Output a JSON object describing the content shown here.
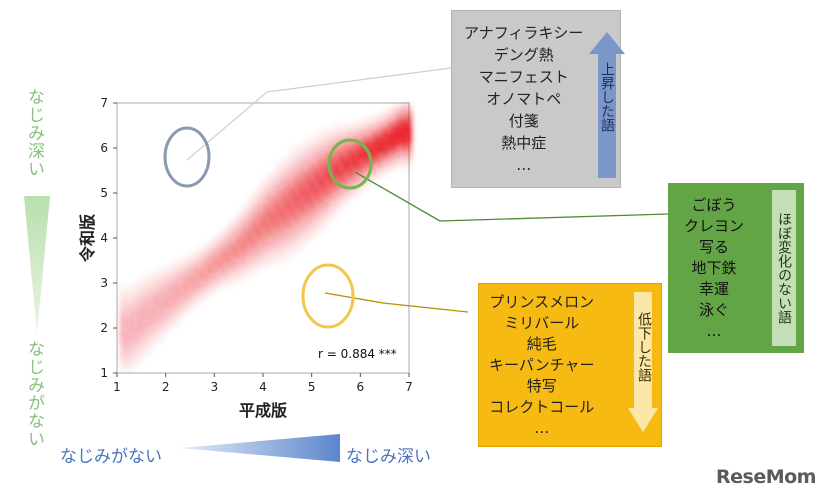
{
  "colors": {
    "left_label": "#86c27a",
    "bottom_label": "#4a74bd",
    "heat": "#e8141b",
    "grey_box": "#c9c9c9",
    "green_box": "#63a447",
    "orange_box": "#f7ba12",
    "blue_arrow": "#7b96c9",
    "grey_circle": "#8a99b0",
    "green_circle": "#74b54f",
    "orange_circle": "#f2c54b"
  },
  "left_axis_top": "なじみ深い",
  "left_axis_bottom": "なじみがない",
  "bottom_axis_left": "なじみがない",
  "bottom_axis_right": "なじみ深い",
  "rising_box": {
    "words": [
      "アナフィラキシー",
      "デング熱",
      "マニフェスト",
      "オノマトペ",
      "付箋",
      "熱中症",
      "…"
    ],
    "arrow_label": "上昇した語"
  },
  "stable_box": {
    "words": [
      "ごぼう",
      "クレヨン",
      "写る",
      "地下鉄",
      "幸運",
      "泳ぐ",
      "…"
    ],
    "side_label": "ほぼ変化のない語"
  },
  "falling_box": {
    "words": [
      "プリンスメロン",
      "ミリバール",
      "純毛",
      "キーパンチャー",
      "特写",
      "コレクトコール",
      "…"
    ],
    "arrow_label": "低下した語"
  },
  "logo": "ReseMom",
  "chart_data": {
    "type": "heatmap",
    "xlabel": "平成版",
    "ylabel": "令和版",
    "xlim": [
      1,
      7
    ],
    "ylim": [
      1,
      7
    ],
    "xticks": [
      1,
      2,
      3,
      4,
      5,
      6,
      7
    ],
    "yticks": [
      1,
      2,
      3,
      4,
      5,
      6,
      7
    ],
    "annotation": "r = 0.884 ***",
    "correlation": 0.884,
    "density_ridge": [
      [
        1.2,
        1.9
      ],
      [
        1.5,
        2.2
      ],
      [
        2.0,
        2.6
      ],
      [
        2.5,
        3.0
      ],
      [
        3.0,
        3.4
      ],
      [
        3.5,
        3.8
      ],
      [
        4.0,
        4.3
      ],
      [
        4.5,
        4.7
      ],
      [
        5.0,
        5.1
      ],
      [
        5.5,
        5.5
      ],
      [
        6.0,
        5.8
      ],
      [
        6.5,
        6.1
      ],
      [
        6.8,
        6.3
      ]
    ],
    "highlight_regions": [
      {
        "group": "rising",
        "x": 2.5,
        "y": 5.8
      },
      {
        "group": "stable",
        "x": 5.8,
        "y": 5.7
      },
      {
        "group": "falling",
        "x": 5.5,
        "y": 2.9
      }
    ],
    "grid": false,
    "legend": "none"
  }
}
